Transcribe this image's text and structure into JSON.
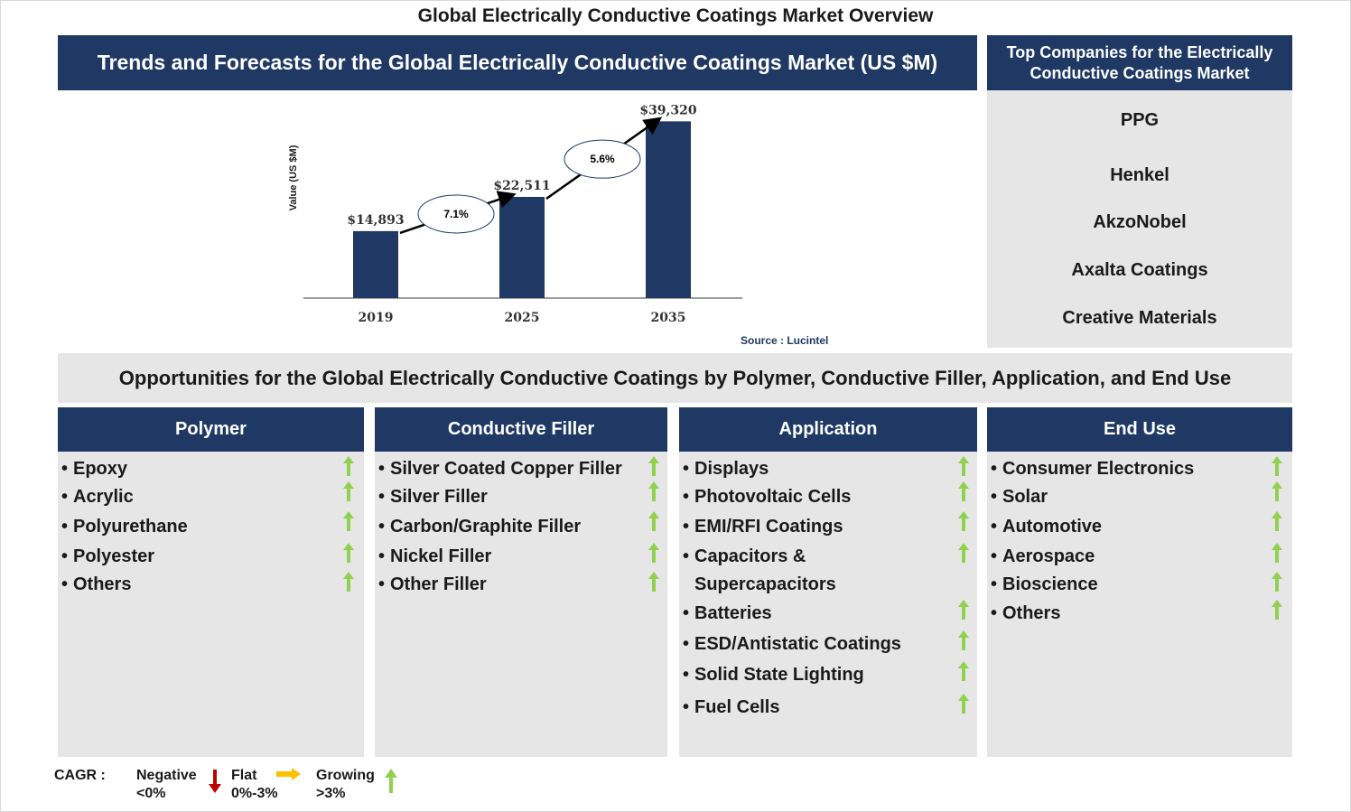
{
  "main_title": "Global Electrically Conductive Coatings Market Overview",
  "trends_title": "Trends and Forecasts for the Global Electrically Conductive Coatings Market (US $M)",
  "companies": {
    "title": "Top Companies for the Electrically Conductive Coatings Market",
    "items": [
      "PPG",
      "Henkel",
      "AkzoNobel",
      "Axalta Coatings",
      "Creative Materials"
    ]
  },
  "chart_data": {
    "type": "bar",
    "categories": [
      "2019",
      "2025",
      "2035"
    ],
    "values": [
      14893,
      22511,
      39320
    ],
    "value_labels": [
      "$14,893",
      "$22,511",
      "$39,320"
    ],
    "ylabel": "Value (US $M)",
    "ylim": [
      0,
      41000
    ],
    "cagr": [
      {
        "from": "2019",
        "to": "2025",
        "label": "7.1%"
      },
      {
        "from": "2025",
        "to": "2035",
        "label": "5.6%"
      }
    ],
    "bar_color": "#1f3864",
    "source": "Source : Lucintel",
    "grid": false
  },
  "opportunities_title": "Opportunities for the Global Electrically Conductive Coatings by Polymer, Conductive Filler, Application, and End Use",
  "segments": [
    {
      "title": "Polymer",
      "items": [
        "Epoxy",
        "Acrylic",
        "Polyurethane",
        "Polyester",
        "Others"
      ]
    },
    {
      "title": "Conductive Filler",
      "items": [
        "Silver Coated Copper Filler",
        "Silver Filler",
        "Carbon/Graphite Filler",
        "Nickel Filler",
        "Other Filler"
      ]
    },
    {
      "title": "Application",
      "items": [
        "Displays",
        "Photovoltaic Cells",
        "EMI/RFI Coatings",
        "Capacitors &",
        "Supercapacitors",
        "Batteries",
        "ESD/Antistatic Coatings",
        "Solid State Lighting",
        "Fuel Cells"
      ]
    },
    {
      "title": "End Use",
      "items": [
        "Consumer Electronics",
        "Solar",
        "Automotive",
        "Aerospace",
        "Bioscience",
        "Others"
      ]
    }
  ],
  "legend": {
    "cagr_label": "CAGR :",
    "negative_label": "Negative",
    "negative_range": "<0%",
    "flat_label": "Flat",
    "flat_range": "0%-3%",
    "growing_label": "Growing",
    "growing_range": ">3%",
    "growing_color": "#92d050",
    "negative_color": "#c00000",
    "flat_color": "#ffc000"
  }
}
